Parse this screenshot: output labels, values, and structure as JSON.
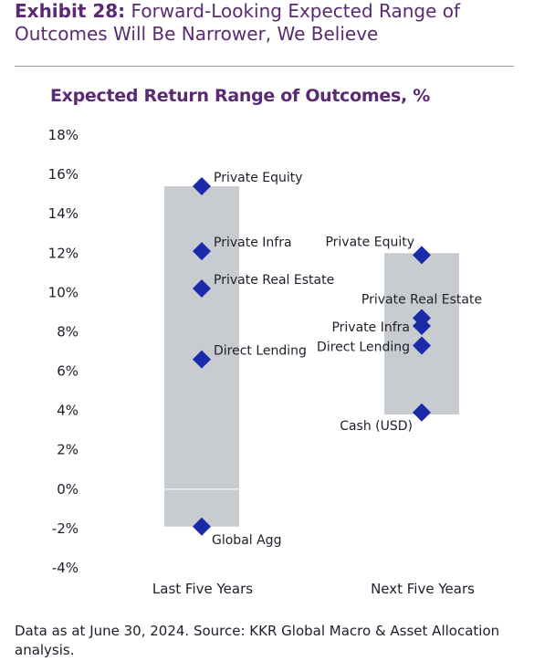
{
  "header": {
    "exhibit_number": "Exhibit 28:",
    "exhibit_title": "Forward-Looking Expected Range of Outcomes Will Be Narrower, We Believe"
  },
  "footnote": "Data as at June 30, 2024. Source: KKR Global Macro & Asset Allocation analysis.",
  "colors": {
    "title": "#5a2a73",
    "marker": "#1a2aa8",
    "range_bar": "#c8ccd0",
    "text": "#1e1e2a"
  },
  "chart_data": {
    "type": "range",
    "title": "Expected Return Range of Outcomes, %",
    "ylim": [
      -4,
      18
    ],
    "yticks": [
      {
        "value": 18,
        "label": "18%"
      },
      {
        "value": 16,
        "label": "16%"
      },
      {
        "value": 14,
        "label": "14%"
      },
      {
        "value": 12,
        "label": "12%"
      },
      {
        "value": 10,
        "label": "10%"
      },
      {
        "value": 8,
        "label": "8%"
      },
      {
        "value": 6,
        "label": "6%"
      },
      {
        "value": 4,
        "label": "4%"
      },
      {
        "value": 2,
        "label": "2%"
      },
      {
        "value": 0,
        "label": "0%"
      },
      {
        "value": -2,
        "label": "-2%"
      },
      {
        "value": -4,
        "label": "-4%"
      }
    ],
    "categories": [
      {
        "label": "Last Five Years",
        "range": [
          -1.9,
          15.4
        ],
        "points": [
          {
            "name": "Private Equity",
            "value": 15.4,
            "label_side": "right"
          },
          {
            "name": "Private Infra",
            "value": 12.1,
            "label_side": "right"
          },
          {
            "name": "Private Real Estate",
            "value": 10.2,
            "label_side": "right"
          },
          {
            "name": "Direct Lending",
            "value": 6.6,
            "label_side": "right"
          },
          {
            "name": "Global Agg",
            "value": -1.9,
            "label_side": "right-below"
          }
        ]
      },
      {
        "label": "Next Five Years",
        "range": [
          3.8,
          12.0
        ],
        "points": [
          {
            "name": "Private Equity",
            "value": 11.9,
            "label_side": "left-above"
          },
          {
            "name": "Private Real Estate",
            "value": 8.7,
            "label_side": "center-above"
          },
          {
            "name": "Private Infra",
            "value": 8.3,
            "label_side": "left"
          },
          {
            "name": "Direct Lending",
            "value": 7.3,
            "label_side": "left"
          },
          {
            "name": "Cash (USD)",
            "value": 3.9,
            "label_side": "left-below"
          }
        ]
      }
    ],
    "grid": false,
    "legend": "none"
  }
}
